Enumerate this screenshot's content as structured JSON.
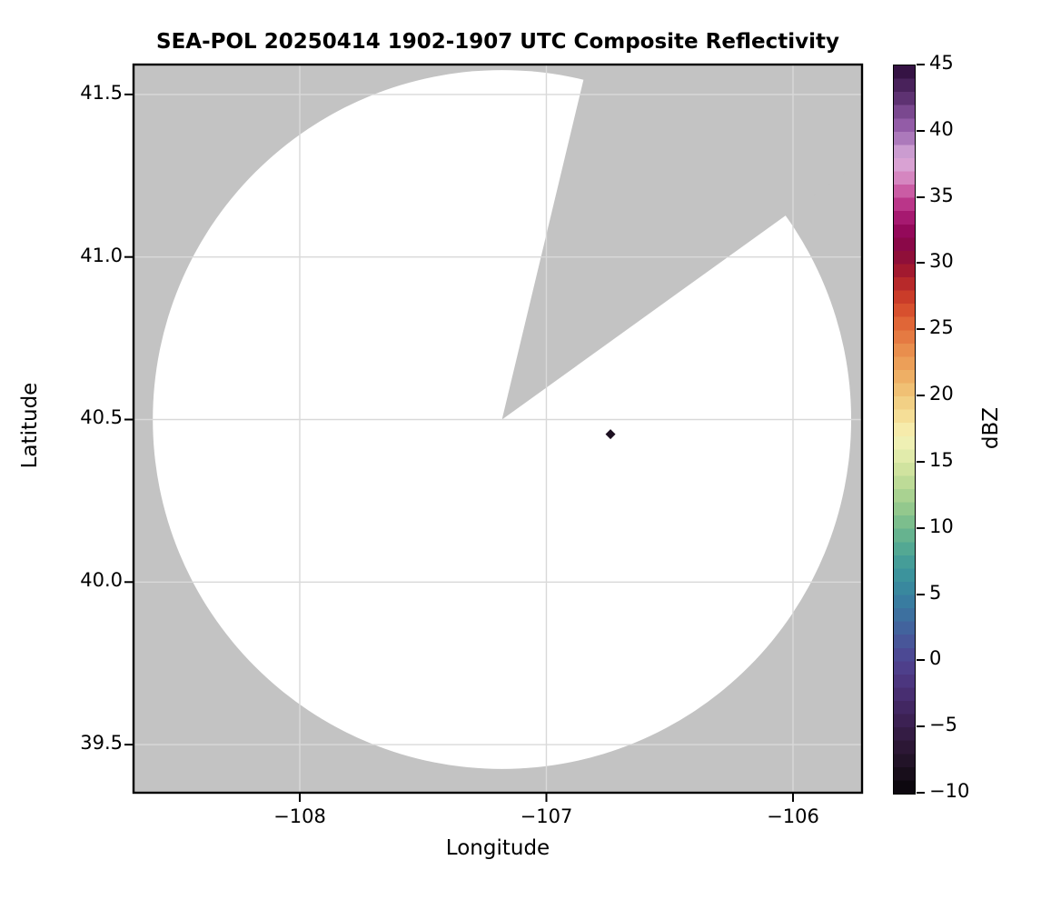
{
  "figure": {
    "title": "SEA-POL 20250414 1902-1907 UTC Composite Reflectivity",
    "xlabel": "Longitude",
    "ylabel": "Latitude",
    "colorbar_label": "dBZ"
  },
  "chart_data": {
    "type": "heatmap",
    "subtype": "radar-ppi-composite-reflectivity",
    "title": "SEA-POL 20250414 1902-1907 UTC Composite Reflectivity",
    "xlabel": "Longitude",
    "ylabel": "Latitude",
    "xlim": [
      -108.674,
      -105.72
    ],
    "ylim": [
      39.352,
      41.592
    ],
    "xticks": [
      -108,
      -107,
      -106
    ],
    "xtick_labels": [
      "−108",
      "−107",
      "−106"
    ],
    "yticks": [
      41.5,
      41.0,
      40.5,
      40.0,
      39.5
    ],
    "ytick_labels": [
      "41.5",
      "41.0",
      "40.5",
      "40.0",
      "39.5"
    ],
    "grid": true,
    "grid_color": "#d9d9d9",
    "plot_bg_color": "#c3c3c3",
    "no_echo_color": "#ffffff",
    "spine_color": "#000000",
    "radar": {
      "center_lon": -107.18,
      "center_lat": 40.5,
      "range_deg_lat": 1.075,
      "coverage": "white disk = scanned area with no echo; surrounding gray = outside radar range",
      "missing_sector_azimuth_deg": [
        13.5,
        54.3
      ],
      "missing_sector_note": "gray wedge from radar center toward NNE-NE = blocked / missing data sector"
    },
    "echoes": [
      {
        "lon": -106.74,
        "lat": 40.455,
        "dbz": -8,
        "shape": "diamond"
      }
    ],
    "colorbar": {
      "label": "dBZ",
      "min": -10,
      "max": 45,
      "band_size_dbz": 1,
      "ticks": [
        45,
        40,
        35,
        30,
        25,
        20,
        15,
        10,
        5,
        0,
        -5,
        -10
      ],
      "tick_labels": [
        "45",
        "40",
        "35",
        "30",
        "25",
        "20",
        "15",
        "10",
        "5",
        "0",
        "−5",
        "−10"
      ],
      "colormap_anchors": [
        [
          -10,
          "#070409"
        ],
        [
          -9,
          "#120b15"
        ],
        [
          -8,
          "#1d1021"
        ],
        [
          -7,
          "#27152e"
        ],
        [
          -6,
          "#30193c"
        ],
        [
          -5,
          "#381e4b"
        ],
        [
          -4,
          "#3f245a"
        ],
        [
          -3,
          "#452a69"
        ],
        [
          -2,
          "#4a3278"
        ],
        [
          -1,
          "#4d3a86"
        ],
        [
          0,
          "#4e4390"
        ],
        [
          1,
          "#4a4f97"
        ],
        [
          2,
          "#455c9b"
        ],
        [
          3,
          "#3f699e"
        ],
        [
          4,
          "#3a76a0"
        ],
        [
          5,
          "#38829f"
        ],
        [
          6,
          "#398d9d"
        ],
        [
          7,
          "#3f989a"
        ],
        [
          8,
          "#4aa295"
        ],
        [
          9,
          "#5cad90"
        ],
        [
          10,
          "#70b88d"
        ],
        [
          11,
          "#88c38c"
        ],
        [
          12,
          "#9ecd8e"
        ],
        [
          13,
          "#b3d793"
        ],
        [
          14,
          "#c7df9a"
        ],
        [
          15,
          "#d9e7a4"
        ],
        [
          16,
          "#e9efb2"
        ],
        [
          17,
          "#f5f0b6"
        ],
        [
          18,
          "#f6e5a0"
        ],
        [
          19,
          "#f3d78d"
        ],
        [
          20,
          "#f0c87c"
        ],
        [
          21,
          "#efb76c"
        ],
        [
          22,
          "#eda75e"
        ],
        [
          23,
          "#ea9752"
        ],
        [
          24,
          "#e78447"
        ],
        [
          25,
          "#e3703c"
        ],
        [
          26,
          "#dc5b31"
        ],
        [
          27,
          "#d2452a"
        ],
        [
          28,
          "#c13327"
        ],
        [
          29,
          "#ad1f2d"
        ],
        [
          30,
          "#971331"
        ],
        [
          31,
          "#870a40"
        ],
        [
          32,
          "#8c0550"
        ],
        [
          33,
          "#9c0d64"
        ],
        [
          34,
          "#b0257c"
        ],
        [
          35,
          "#c34795"
        ],
        [
          36,
          "#d071b2"
        ],
        [
          37,
          "#da9bce"
        ],
        [
          38,
          "#d8a8d8"
        ],
        [
          39,
          "#bd8fc8"
        ],
        [
          40,
          "#9b63ad"
        ],
        [
          41,
          "#8a55a0"
        ],
        [
          42,
          "#693a7e"
        ],
        [
          43,
          "#532a66"
        ],
        [
          44,
          "#3f1a50"
        ],
        [
          45,
          "#2a0c38"
        ]
      ]
    }
  }
}
